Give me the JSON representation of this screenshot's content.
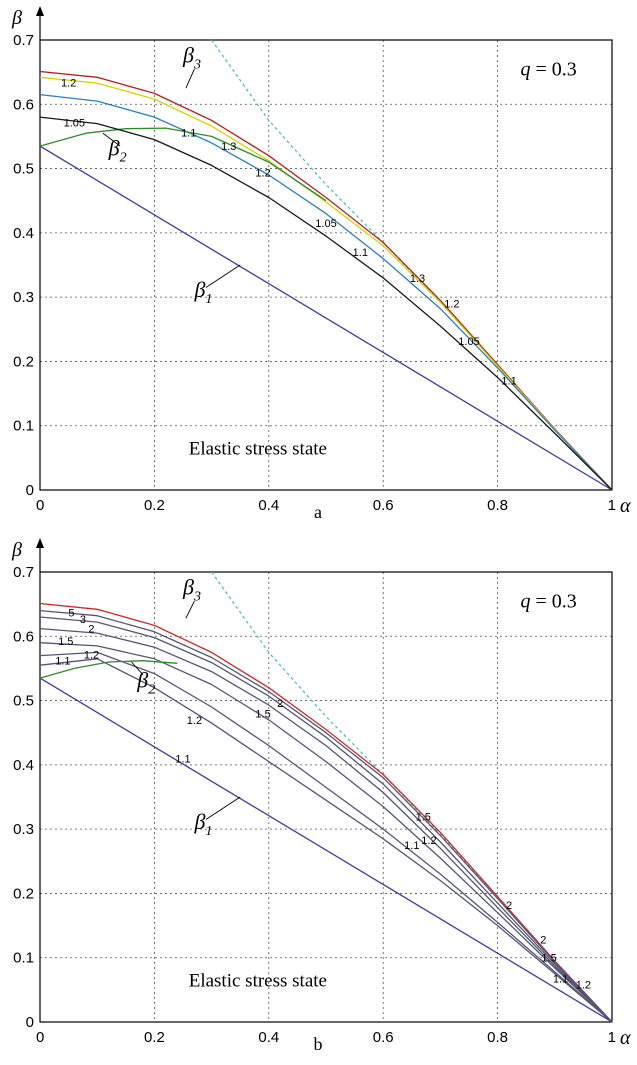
{
  "chart_data": [
    {
      "panel": "a",
      "type": "line",
      "xlabel": "α",
      "ylabel": "β",
      "xlim": [
        0,
        1
      ],
      "ylim": [
        0,
        0.7
      ],
      "x_ticks": [
        "0",
        "0.2",
        "0.4",
        "0.6",
        "0.8",
        "1"
      ],
      "y_ticks": [
        "0",
        "0.1",
        "0.2",
        "0.3",
        "0.4",
        "0.5",
        "0.6",
        "0.7"
      ],
      "grid": "dashed",
      "param_text": {
        "symbol": "q",
        "rest": " = 0.3"
      },
      "region_text": "Elastic stress state",
      "panel_label": "a",
      "line_names": [
        {
          "key": "β",
          "sub": "3"
        },
        {
          "key": "β",
          "sub": "2"
        },
        {
          "key": "β",
          "sub": "1"
        }
      ],
      "series": [
        {
          "id": "b1",
          "color": "#3a3aa8",
          "x": [
            0,
            1
          ],
          "y": [
            0.535,
            0
          ]
        },
        {
          "id": "tangent",
          "color": "#49bfc6",
          "dashed": true,
          "x": [
            0.3,
            0.4,
            0.5,
            0.6,
            0.7,
            0.8
          ],
          "y": [
            0.7,
            0.575,
            0.475,
            0.385,
            0.292,
            0.195
          ]
        },
        {
          "id": "b3",
          "color": "#b22222",
          "x": [
            0,
            0.1,
            0.2,
            0.3,
            0.4,
            0.5,
            0.6,
            0.7,
            0.8,
            0.9,
            1.0
          ],
          "y": [
            0.651,
            0.642,
            0.617,
            0.575,
            0.52,
            0.455,
            0.385,
            0.295,
            0.195,
            0.095,
            0
          ]
        },
        {
          "id": "c13",
          "color": "#d4d400",
          "x": [
            0,
            0.1,
            0.2,
            0.3,
            0.4,
            0.5,
            0.6,
            0.7,
            0.8,
            0.9,
            1.0
          ],
          "y": [
            0.642,
            0.633,
            0.608,
            0.566,
            0.512,
            0.448,
            0.38,
            0.292,
            0.193,
            0.094,
            0
          ]
        },
        {
          "id": "c12",
          "color": "#2a7fc1",
          "x": [
            0,
            0.1,
            0.2,
            0.3,
            0.4,
            0.5,
            0.6,
            0.7,
            0.8,
            0.9,
            1.0
          ],
          "y": [
            0.615,
            0.605,
            0.58,
            0.54,
            0.49,
            0.43,
            0.36,
            0.282,
            0.19,
            0.093,
            0
          ]
        },
        {
          "id": "b2",
          "color": "#2e8b2e",
          "x": [
            0,
            0.08,
            0.15,
            0.22,
            0.3,
            0.4,
            0.5
          ],
          "y": [
            0.535,
            0.555,
            0.562,
            0.563,
            0.55,
            0.51,
            0.45
          ]
        },
        {
          "id": "c105",
          "color": "#1a1a1a",
          "x": [
            0,
            0.1,
            0.2,
            0.3,
            0.4,
            0.5,
            0.6,
            0.7,
            0.8,
            0.9,
            1.0
          ],
          "y": [
            0.58,
            0.57,
            0.545,
            0.505,
            0.455,
            0.395,
            0.33,
            0.255,
            0.175,
            0.088,
            0
          ]
        }
      ],
      "contour_labels": [
        {
          "text": "1.2",
          "x": 0.05,
          "y": 0.634
        },
        {
          "text": "1.3",
          "x": 0.33,
          "y": 0.535
        },
        {
          "text": "1.05",
          "x": 0.06,
          "y": 0.572
        },
        {
          "text": "1.1",
          "x": 0.26,
          "y": 0.556
        },
        {
          "text": "1.2",
          "x": 0.39,
          "y": 0.494
        },
        {
          "text": "1.05",
          "x": 0.5,
          "y": 0.415
        },
        {
          "text": "1.1",
          "x": 0.56,
          "y": 0.37
        },
        {
          "text": "1.3",
          "x": 0.66,
          "y": 0.33
        },
        {
          "text": "1.2",
          "x": 0.72,
          "y": 0.29
        },
        {
          "text": "1.05",
          "x": 0.75,
          "y": 0.232
        },
        {
          "text": "1.1",
          "x": 0.82,
          "y": 0.17
        }
      ]
    },
    {
      "panel": "b",
      "type": "line",
      "xlabel": "α",
      "ylabel": "β",
      "xlim": [
        0,
        1
      ],
      "ylim": [
        0,
        0.7
      ],
      "x_ticks": [
        "0",
        "0.2",
        "0.4",
        "0.6",
        "0.8",
        "1"
      ],
      "y_ticks": [
        "0",
        "0.1",
        "0.2",
        "0.3",
        "0.4",
        "0.5",
        "0.6",
        "0.7"
      ],
      "grid": "dashed",
      "param_text": {
        "symbol": "q",
        "rest": " = 0.3"
      },
      "region_text": "Elastic stress state",
      "panel_label": "b",
      "line_names": [
        {
          "key": "β",
          "sub": "3"
        },
        {
          "key": "β",
          "sub": "2"
        },
        {
          "key": "β",
          "sub": "1"
        }
      ],
      "series": [
        {
          "id": "b1",
          "color": "#3a3aa8",
          "x": [
            0,
            1
          ],
          "y": [
            0.535,
            0
          ]
        },
        {
          "id": "tangent",
          "color": "#49bfc6",
          "dashed": true,
          "x": [
            0.3,
            0.4,
            0.5,
            0.6,
            0.7,
            0.8
          ],
          "y": [
            0.7,
            0.575,
            0.475,
            0.385,
            0.292,
            0.195
          ]
        },
        {
          "id": "b3",
          "color": "#cc2a2a",
          "x": [
            0,
            0.1,
            0.2,
            0.3,
            0.4,
            0.5,
            0.6,
            0.7,
            0.8,
            0.9,
            1.0
          ],
          "y": [
            0.651,
            0.642,
            0.617,
            0.575,
            0.52,
            0.455,
            0.385,
            0.295,
            0.195,
            0.095,
            0
          ]
        },
        {
          "id": "k5",
          "color": "#555577",
          "x": [
            0,
            0.1,
            0.2,
            0.3,
            0.4,
            0.5,
            0.6,
            0.7,
            0.8,
            0.9,
            1.0
          ],
          "y": [
            0.64,
            0.632,
            0.607,
            0.567,
            0.514,
            0.45,
            0.38,
            0.29,
            0.192,
            0.093,
            0
          ]
        },
        {
          "id": "k3",
          "color": "#555577",
          "x": [
            0,
            0.1,
            0.2,
            0.3,
            0.4,
            0.5,
            0.6,
            0.7,
            0.8,
            0.9,
            1.0
          ],
          "y": [
            0.63,
            0.622,
            0.598,
            0.559,
            0.507,
            0.443,
            0.37,
            0.28,
            0.185,
            0.09,
            0
          ]
        },
        {
          "id": "k2",
          "color": "#555577",
          "x": [
            0,
            0.1,
            0.2,
            0.3,
            0.4,
            0.5,
            0.6,
            0.7,
            0.8,
            0.9,
            1.0
          ],
          "y": [
            0.612,
            0.605,
            0.583,
            0.545,
            0.493,
            0.43,
            0.357,
            0.27,
            0.178,
            0.087,
            0
          ]
        },
        {
          "id": "k15",
          "color": "#555577",
          "x": [
            0,
            0.1,
            0.2,
            0.3,
            0.4,
            0.5,
            0.6,
            0.7,
            0.8,
            0.9,
            1.0
          ],
          "y": [
            0.59,
            0.585,
            0.565,
            0.525,
            0.47,
            0.405,
            0.335,
            0.255,
            0.17,
            0.084,
            0
          ]
        },
        {
          "id": "k12",
          "color": "#555577",
          "x": [
            0,
            0.1,
            0.2,
            0.3,
            0.4,
            0.5,
            0.6,
            0.7,
            0.8,
            0.9,
            1.0
          ],
          "y": [
            0.57,
            0.575,
            0.542,
            0.49,
            0.43,
            0.365,
            0.3,
            0.23,
            0.155,
            0.078,
            0
          ]
        },
        {
          "id": "k11",
          "color": "#555577",
          "x": [
            0,
            0.1,
            0.2,
            0.3,
            0.4,
            0.5,
            0.6,
            0.7,
            0.8,
            0.9,
            1.0
          ],
          "y": [
            0.555,
            0.565,
            0.52,
            0.465,
            0.405,
            0.345,
            0.285,
            0.22,
            0.15,
            0.075,
            0
          ]
        },
        {
          "id": "b2",
          "color": "#2e8b2e",
          "x": [
            0,
            0.06,
            0.12,
            0.18,
            0.24
          ],
          "y": [
            0.535,
            0.55,
            0.56,
            0.562,
            0.558
          ]
        }
      ],
      "contour_labels": [
        {
          "text": "5",
          "x": 0.055,
          "y": 0.637
        },
        {
          "text": "3",
          "x": 0.075,
          "y": 0.627
        },
        {
          "text": "2",
          "x": 0.09,
          "y": 0.612
        },
        {
          "text": "1.5",
          "x": 0.045,
          "y": 0.593
        },
        {
          "text": "1.1",
          "x": 0.04,
          "y": 0.562
        },
        {
          "text": "1.2",
          "x": 0.09,
          "y": 0.572
        },
        {
          "text": "1.5",
          "x": 0.39,
          "y": 0.48
        },
        {
          "text": "2",
          "x": 0.42,
          "y": 0.496
        },
        {
          "text": "1.2",
          "x": 0.27,
          "y": 0.47
        },
        {
          "text": "1.1",
          "x": 0.25,
          "y": 0.41
        },
        {
          "text": "1.5",
          "x": 0.67,
          "y": 0.32
        },
        {
          "text": "1.1",
          "x": 0.65,
          "y": 0.275
        },
        {
          "text": "1.2",
          "x": 0.68,
          "y": 0.283
        },
        {
          "text": "2",
          "x": 0.82,
          "y": 0.182
        },
        {
          "text": "2",
          "x": 0.88,
          "y": 0.128
        },
        {
          "text": "1.5",
          "x": 0.89,
          "y": 0.1
        },
        {
          "text": "1.1",
          "x": 0.91,
          "y": 0.068
        },
        {
          "text": "1.2",
          "x": 0.95,
          "y": 0.058
        }
      ]
    }
  ]
}
